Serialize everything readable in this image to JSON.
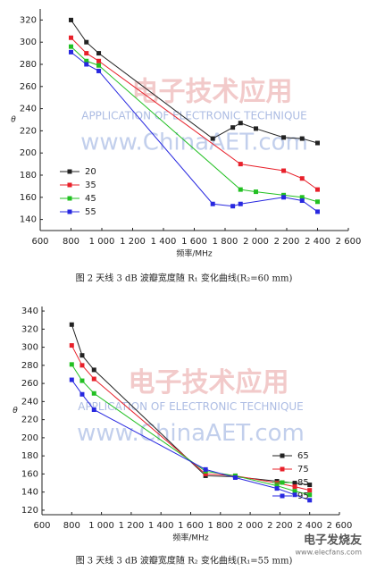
{
  "chart_data": [
    {
      "type": "line",
      "y_label": "θ",
      "x_label": "频率/MHz",
      "caption": "图 2 天线 3 dB 波瓣宽度随 R₁ 变化曲线(R₂=60 mm)",
      "watermark": [
        "电子技术应用",
        "APPLICATION OF ELECTRONIC TECHNIQUE",
        "www.ChinaAET.com"
      ],
      "xlim": [
        600,
        2600
      ],
      "xticks": [
        600,
        800,
        {
          "value": 1000,
          "label": "1 000"
        },
        {
          "value": 1200,
          "label": "1 200"
        },
        {
          "value": 1400,
          "label": "1 400"
        },
        {
          "value": 1600,
          "label": "1 600"
        },
        {
          "value": 1800,
          "label": "1 800"
        },
        {
          "value": 2000,
          "label": "2 000"
        },
        {
          "value": 2200,
          "label": "2 200"
        },
        {
          "value": 2400,
          "label": "2 400"
        },
        {
          "value": 2600,
          "label": "2 600"
        }
      ],
      "ylim": [
        130,
        330
      ],
      "yticks": [
        140,
        160,
        180,
        200,
        220,
        240,
        260,
        280,
        300,
        320
      ],
      "legend": "lower left",
      "series": [
        {
          "name": "20",
          "color": "#222222",
          "x": [
            800,
            900,
            980,
            1720,
            1850,
            1900,
            2000,
            2180,
            2300,
            2400
          ],
          "values": [
            320,
            300,
            290,
            213,
            223,
            227,
            222,
            214,
            213,
            209
          ]
        },
        {
          "name": "35",
          "color": "#e8202a",
          "x": [
            800,
            900,
            980,
            1900,
            2180,
            2300,
            2400
          ],
          "values": [
            304,
            290,
            283,
            190,
            184,
            177,
            167
          ]
        },
        {
          "name": "45",
          "color": "#22c022",
          "x": [
            800,
            900,
            980,
            1900,
            2000,
            2180,
            2300,
            2400
          ],
          "values": [
            296,
            283,
            279,
            167,
            165,
            162,
            160,
            156
          ]
        },
        {
          "name": "55",
          "color": "#2828e0",
          "x": [
            800,
            900,
            980,
            1720,
            1850,
            1900,
            2180,
            2300,
            2400
          ],
          "values": [
            291,
            280,
            274,
            154,
            152,
            154,
            160,
            157,
            147
          ]
        }
      ]
    },
    {
      "type": "line",
      "y_label": "θ",
      "x_label": "频率/MHz",
      "caption": "图 3 天线 3 dB 波瓣宽度随 R₂ 变化曲线(R₁=55 mm)",
      "watermark": [
        "电子技术应用",
        "APPLICATION OF ELECTRONIC TECHNIQUE",
        "www.ChinaAET.com"
      ],
      "footer_logo": [
        "电子发烧友",
        "www.elecfans.com"
      ],
      "xlim": [
        600,
        2600
      ],
      "xticks": [
        600,
        800,
        {
          "value": 1000,
          "label": "1 000"
        },
        {
          "value": 1200,
          "label": "1 200"
        },
        {
          "value": 1400,
          "label": "1 400"
        },
        {
          "value": 1600,
          "label": "1 600"
        },
        {
          "value": 1800,
          "label": "1 800"
        },
        {
          "value": 2000,
          "label": "2 000"
        },
        {
          "value": 2200,
          "label": "2 200"
        },
        {
          "value": 2400,
          "label": "2 400"
        },
        {
          "value": 2600,
          "label": "2 600"
        }
      ],
      "ylim": [
        115,
        345
      ],
      "yticks": [
        120,
        140,
        160,
        180,
        200,
        220,
        240,
        260,
        280,
        300,
        320,
        340
      ],
      "legend": "lower right",
      "series": [
        {
          "name": "65",
          "color": "#222222",
          "x": [
            800,
            870,
            950,
            1700,
            1900,
            2180,
            2300,
            2400
          ],
          "values": [
            325,
            291,
            275,
            158,
            157,
            152,
            150,
            148
          ]
        },
        {
          "name": "75",
          "color": "#e8202a",
          "x": [
            800,
            870,
            950,
            1700,
            1900,
            2180,
            2300,
            2400
          ],
          "values": [
            302,
            280,
            265,
            160,
            158,
            150,
            146,
            142
          ]
        },
        {
          "name": "85",
          "color": "#22c022",
          "x": [
            800,
            870,
            950,
            1700,
            1900,
            2180,
            2300,
            2400
          ],
          "values": [
            281,
            263,
            249,
            163,
            158,
            147,
            141,
            137
          ]
        },
        {
          "name": "95",
          "color": "#2828e0",
          "x": [
            800,
            870,
            950,
            1700,
            1900,
            2180,
            2300,
            2400
          ],
          "values": [
            264,
            248,
            231,
            165,
            156,
            144,
            137,
            131
          ]
        }
      ]
    }
  ]
}
